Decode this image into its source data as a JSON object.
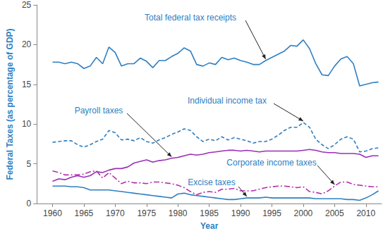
{
  "chart_data": {
    "type": "line",
    "x_label": "Year",
    "y_label": "Federal Taxes (as percentage of GDP)",
    "x": [
      1960,
      1961,
      1962,
      1963,
      1964,
      1965,
      1966,
      1967,
      1968,
      1969,
      1970,
      1971,
      1972,
      1973,
      1974,
      1975,
      1976,
      1977,
      1978,
      1979,
      1980,
      1981,
      1982,
      1983,
      1984,
      1985,
      1986,
      1987,
      1988,
      1989,
      1990,
      1991,
      1992,
      1993,
      1994,
      1995,
      1996,
      1997,
      1998,
      1999,
      2000,
      2001,
      2002,
      2003,
      2004,
      2005,
      2006,
      2007,
      2008,
      2009,
      2010,
      2011,
      2012
    ],
    "series": [
      {
        "name": "Total federal tax receipts",
        "color": "#2f7fc1",
        "line_style": "solid",
        "values": [
          17.8,
          17.8,
          17.6,
          17.8,
          17.6,
          17.0,
          17.3,
          18.4,
          17.6,
          19.7,
          19.0,
          17.3,
          17.6,
          17.6,
          18.3,
          17.9,
          17.1,
          18.0,
          18.0,
          18.5,
          18.9,
          19.6,
          19.2,
          17.5,
          17.3,
          17.7,
          17.5,
          18.4,
          18.1,
          18.3,
          18.0,
          17.8,
          17.5,
          17.5,
          18.0,
          18.4,
          18.8,
          19.2,
          19.9,
          19.8,
          20.6,
          19.5,
          17.6,
          16.2,
          16.1,
          17.3,
          18.2,
          18.5,
          17.6,
          14.8,
          15.0,
          15.2,
          15.3
        ]
      },
      {
        "name": "Individual income tax",
        "color": "#2f7fc1",
        "line_style": "dashed",
        "values": [
          7.7,
          7.8,
          7.9,
          7.9,
          7.4,
          7.1,
          7.4,
          7.8,
          8.1,
          9.2,
          8.9,
          8.0,
          8.1,
          7.9,
          8.3,
          7.8,
          7.6,
          8.0,
          8.3,
          8.7,
          9.0,
          9.4,
          9.2,
          8.4,
          7.8,
          8.1,
          7.9,
          8.4,
          8.0,
          8.3,
          8.1,
          7.9,
          7.6,
          7.8,
          7.8,
          8.1,
          8.6,
          9.2,
          9.6,
          9.6,
          10.2,
          9.6,
          8.1,
          7.4,
          6.9,
          7.4,
          8.1,
          8.4,
          8.1,
          6.5,
          6.6,
          6.9,
          7.0
        ]
      },
      {
        "name": "Payroll taxes",
        "color": "#9a2fb5",
        "line_style": "solid",
        "values": [
          2.8,
          3.1,
          3.0,
          3.3,
          3.5,
          3.3,
          3.5,
          4.0,
          3.9,
          4.2,
          4.4,
          4.4,
          4.6,
          5.1,
          5.3,
          5.5,
          5.2,
          5.4,
          5.5,
          5.7,
          5.8,
          6.0,
          6.2,
          6.1,
          6.2,
          6.4,
          6.5,
          6.6,
          6.7,
          6.7,
          6.6,
          6.7,
          6.6,
          6.5,
          6.6,
          6.6,
          6.6,
          6.6,
          6.6,
          6.6,
          6.7,
          6.8,
          6.7,
          6.5,
          6.4,
          6.4,
          6.3,
          6.3,
          6.3,
          6.2,
          5.8,
          6.0,
          6.0
        ]
      },
      {
        "name": "Corporate income taxes",
        "color": "#b52fad",
        "line_style": "dashdot",
        "values": [
          4.1,
          3.9,
          3.6,
          3.6,
          3.6,
          3.7,
          4.0,
          4.1,
          3.2,
          3.9,
          3.2,
          2.5,
          2.8,
          2.6,
          2.6,
          2.5,
          2.7,
          2.7,
          2.6,
          2.5,
          2.3,
          2.0,
          1.5,
          1.1,
          1.4,
          1.5,
          1.4,
          1.8,
          1.8,
          1.9,
          1.6,
          1.6,
          1.6,
          1.8,
          2.0,
          2.1,
          2.2,
          2.2,
          2.1,
          2.0,
          2.1,
          1.5,
          1.4,
          1.2,
          1.6,
          2.2,
          2.7,
          2.7,
          2.4,
          2.3,
          2.2,
          2.1,
          2.1
        ]
      },
      {
        "name": "Excise taxes",
        "color": "#2f7fc1",
        "line_style": "solid",
        "values": [
          2.2,
          2.2,
          2.2,
          2.1,
          2.1,
          2.0,
          1.7,
          1.7,
          1.7,
          1.7,
          1.6,
          1.5,
          1.4,
          1.3,
          1.2,
          1.1,
          1.0,
          0.9,
          0.8,
          0.7,
          1.2,
          1.3,
          1.1,
          1.0,
          0.9,
          0.8,
          0.7,
          0.6,
          0.5,
          0.5,
          0.6,
          0.7,
          0.7,
          0.7,
          0.8,
          0.7,
          0.7,
          0.7,
          0.7,
          0.7,
          0.7,
          0.7,
          0.6,
          0.6,
          0.6,
          0.6,
          0.6,
          0.5,
          0.5,
          0.4,
          0.7,
          1.1,
          1.6
        ]
      }
    ],
    "xlim": [
      1957.5,
      2012.5
    ],
    "xticks": [
      1960,
      1965,
      1970,
      1975,
      1980,
      1985,
      1990,
      1995,
      2000,
      2005,
      2010
    ],
    "ylim": [
      0,
      25
    ],
    "yticks": [
      0,
      5,
      10,
      15,
      20,
      25
    ],
    "grid": false
  }
}
